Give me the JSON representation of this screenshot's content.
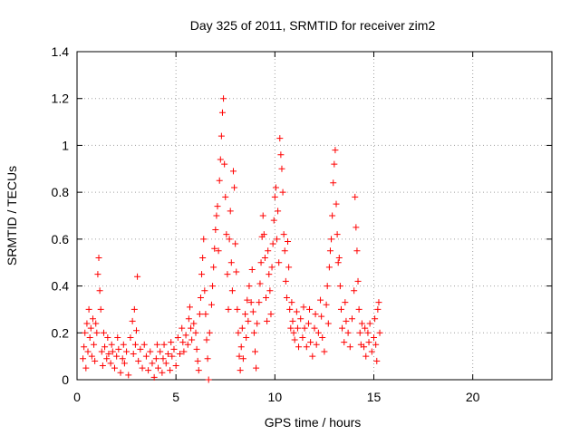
{
  "chart_data": {
    "type": "scatter",
    "title": "Day 325 of 2011, SRMTID for receiver zim2",
    "xlabel": "GPS time / hours",
    "ylabel": "SRMTID / TECUs",
    "xlim": [
      0,
      24
    ],
    "ylim": [
      0,
      1.4
    ],
    "xticks": [
      0,
      5,
      10,
      15,
      20
    ],
    "xtick_labels": [
      "0",
      "5",
      "10",
      "15",
      "20"
    ],
    "yticks": [
      0,
      0.2,
      0.4,
      0.6,
      0.8,
      1,
      1.2,
      1.4
    ],
    "ytick_labels": [
      "0",
      "0.2",
      "0.4",
      "0.6",
      "0.8",
      "1",
      "1.2",
      "1.4"
    ],
    "grid": true,
    "marker": "plus",
    "color": "#ff0000",
    "series": [
      {
        "name": "SRMTID",
        "points": [
          [
            0.3,
            0.09
          ],
          [
            0.35,
            0.14
          ],
          [
            0.4,
            0.2
          ],
          [
            0.45,
            0.05
          ],
          [
            0.5,
            0.24
          ],
          [
            0.55,
            0.12
          ],
          [
            0.6,
            0.3
          ],
          [
            0.65,
            0.18
          ],
          [
            0.7,
            0.22
          ],
          [
            0.75,
            0.1
          ],
          [
            0.8,
            0.26
          ],
          [
            0.85,
            0.15
          ],
          [
            0.9,
            0.08
          ],
          [
            0.95,
            0.24
          ],
          [
            1.0,
            0.2
          ],
          [
            1.05,
            0.45
          ],
          [
            1.1,
            0.52
          ],
          [
            1.15,
            0.38
          ],
          [
            1.2,
            0.3
          ],
          [
            1.25,
            0.12
          ],
          [
            1.3,
            0.06
          ],
          [
            1.35,
            0.2
          ],
          [
            1.4,
            0.14
          ],
          [
            1.5,
            0.09
          ],
          [
            1.55,
            0.18
          ],
          [
            1.6,
            0.11
          ],
          [
            1.7,
            0.07
          ],
          [
            1.75,
            0.15
          ],
          [
            1.8,
            0.12
          ],
          [
            1.9,
            0.05
          ],
          [
            2.0,
            0.1
          ],
          [
            2.05,
            0.18
          ],
          [
            2.1,
            0.13
          ],
          [
            2.2,
            0.03
          ],
          [
            2.3,
            0.09
          ],
          [
            2.35,
            0.15
          ],
          [
            2.4,
            0.07
          ],
          [
            2.5,
            0.12
          ],
          [
            2.6,
            0.02
          ],
          [
            2.7,
            0.18
          ],
          [
            2.8,
            0.25
          ],
          [
            2.85,
            0.11
          ],
          [
            2.9,
            0.3
          ],
          [
            2.95,
            0.15
          ],
          [
            3.0,
            0.21
          ],
          [
            3.05,
            0.44
          ],
          [
            3.1,
            0.08
          ],
          [
            3.2,
            0.13
          ],
          [
            3.3,
            0.05
          ],
          [
            3.4,
            0.15
          ],
          [
            3.5,
            0.1
          ],
          [
            3.6,
            0.04
          ],
          [
            3.7,
            0.12
          ],
          [
            3.8,
            0.07
          ],
          [
            3.9,
            0.01
          ],
          [
            4.0,
            0.09
          ],
          [
            4.05,
            0.15
          ],
          [
            4.1,
            0.05
          ],
          [
            4.2,
            0.12
          ],
          [
            4.3,
            0.03
          ],
          [
            4.35,
            0.09
          ],
          [
            4.4,
            0.15
          ],
          [
            4.5,
            0.07
          ],
          [
            4.6,
            0.11
          ],
          [
            4.7,
            0.04
          ],
          [
            4.75,
            0.16
          ],
          [
            4.8,
            0.1
          ],
          [
            4.9,
            0.13
          ],
          [
            5.0,
            0.06
          ],
          [
            5.1,
            0.18
          ],
          [
            5.2,
            0.11
          ],
          [
            5.3,
            0.22
          ],
          [
            5.35,
            0.16
          ],
          [
            5.4,
            0.12
          ],
          [
            5.5,
            0.19
          ],
          [
            5.6,
            0.15
          ],
          [
            5.65,
            0.26
          ],
          [
            5.7,
            0.31
          ],
          [
            5.75,
            0.22
          ],
          [
            5.8,
            0.17
          ],
          [
            5.9,
            0.24
          ],
          [
            6.0,
            0.2
          ],
          [
            6.05,
            0.13
          ],
          [
            6.1,
            0.08
          ],
          [
            6.15,
            0.04
          ],
          [
            6.2,
            0.28
          ],
          [
            6.25,
            0.35
          ],
          [
            6.3,
            0.45
          ],
          [
            6.35,
            0.52
          ],
          [
            6.4,
            0.6
          ],
          [
            6.45,
            0.38
          ],
          [
            6.5,
            0.28
          ],
          [
            6.55,
            0.17
          ],
          [
            6.6,
            0.09
          ],
          [
            6.65,
            0.0
          ],
          [
            6.7,
            0.2
          ],
          [
            6.8,
            0.32
          ],
          [
            6.85,
            0.4
          ],
          [
            6.9,
            0.48
          ],
          [
            6.95,
            0.56
          ],
          [
            7.0,
            0.64
          ],
          [
            7.05,
            0.7
          ],
          [
            7.1,
            0.74
          ],
          [
            7.15,
            0.55
          ],
          [
            7.2,
            0.85
          ],
          [
            7.25,
            0.94
          ],
          [
            7.3,
            1.04
          ],
          [
            7.35,
            1.14
          ],
          [
            7.4,
            1.2
          ],
          [
            7.45,
            0.92
          ],
          [
            7.5,
            0.78
          ],
          [
            7.55,
            0.62
          ],
          [
            7.6,
            0.45
          ],
          [
            7.65,
            0.3
          ],
          [
            7.7,
            0.6
          ],
          [
            7.75,
            0.72
          ],
          [
            7.8,
            0.5
          ],
          [
            7.85,
            0.38
          ],
          [
            7.9,
            0.89
          ],
          [
            7.95,
            0.82
          ],
          [
            8.0,
            0.58
          ],
          [
            8.05,
            0.46
          ],
          [
            8.1,
            0.3
          ],
          [
            8.15,
            0.2
          ],
          [
            8.2,
            0.1
          ],
          [
            8.25,
            0.04
          ],
          [
            8.3,
            0.14
          ],
          [
            8.35,
            0.22
          ],
          [
            8.4,
            0.09
          ],
          [
            8.5,
            0.28
          ],
          [
            8.55,
            0.18
          ],
          [
            8.6,
            0.34
          ],
          [
            8.65,
            0.25
          ],
          [
            8.7,
            0.4
          ],
          [
            8.8,
            0.33
          ],
          [
            8.85,
            0.47
          ],
          [
            8.9,
            0.29
          ],
          [
            8.95,
            0.2
          ],
          [
            9.0,
            0.12
          ],
          [
            9.05,
            0.05
          ],
          [
            9.1,
            0.24
          ],
          [
            9.2,
            0.33
          ],
          [
            9.25,
            0.41
          ],
          [
            9.3,
            0.5
          ],
          [
            9.35,
            0.61
          ],
          [
            9.4,
            0.7
          ],
          [
            9.45,
            0.62
          ],
          [
            9.5,
            0.52
          ],
          [
            9.55,
            0.35
          ],
          [
            9.6,
            0.25
          ],
          [
            9.65,
            0.55
          ],
          [
            9.7,
            0.45
          ],
          [
            9.75,
            0.38
          ],
          [
            9.8,
            0.28
          ],
          [
            9.85,
            0.48
          ],
          [
            9.9,
            0.58
          ],
          [
            9.95,
            0.68
          ],
          [
            10.0,
            0.78
          ],
          [
            10.05,
            0.82
          ],
          [
            10.1,
            0.6
          ],
          [
            10.15,
            0.72
          ],
          [
            10.2,
            0.5
          ],
          [
            10.25,
            1.03
          ],
          [
            10.3,
            0.96
          ],
          [
            10.35,
            0.9
          ],
          [
            10.4,
            0.8
          ],
          [
            10.45,
            0.62
          ],
          [
            10.5,
            0.55
          ],
          [
            10.55,
            0.42
          ],
          [
            10.6,
            0.35
          ],
          [
            10.65,
            0.59
          ],
          [
            10.7,
            0.48
          ],
          [
            10.75,
            0.3
          ],
          [
            10.8,
            0.22
          ],
          [
            10.85,
            0.33
          ],
          [
            10.9,
            0.25
          ],
          [
            10.95,
            0.2
          ],
          [
            11.0,
            0.17
          ],
          [
            11.1,
            0.29
          ],
          [
            11.15,
            0.22
          ],
          [
            11.2,
            0.14
          ],
          [
            11.3,
            0.26
          ],
          [
            11.4,
            0.18
          ],
          [
            11.45,
            0.31
          ],
          [
            11.5,
            0.22
          ],
          [
            11.6,
            0.14
          ],
          [
            11.7,
            0.24
          ],
          [
            11.75,
            0.3
          ],
          [
            11.8,
            0.16
          ],
          [
            11.9,
            0.1
          ],
          [
            12.0,
            0.22
          ],
          [
            12.05,
            0.28
          ],
          [
            12.1,
            0.15
          ],
          [
            12.2,
            0.2
          ],
          [
            12.3,
            0.34
          ],
          [
            12.35,
            0.27
          ],
          [
            12.4,
            0.18
          ],
          [
            12.5,
            0.12
          ],
          [
            12.6,
            0.32
          ],
          [
            12.65,
            0.4
          ],
          [
            12.7,
            0.24
          ],
          [
            12.75,
            0.48
          ],
          [
            12.8,
            0.55
          ],
          [
            12.85,
            0.6
          ],
          [
            12.9,
            0.7
          ],
          [
            12.95,
            0.84
          ],
          [
            13.0,
            0.92
          ],
          [
            13.05,
            0.98
          ],
          [
            13.1,
            0.75
          ],
          [
            13.15,
            0.62
          ],
          [
            13.2,
            0.5
          ],
          [
            13.25,
            0.52
          ],
          [
            13.3,
            0.4
          ],
          [
            13.35,
            0.3
          ],
          [
            13.4,
            0.22
          ],
          [
            13.5,
            0.16
          ],
          [
            13.55,
            0.33
          ],
          [
            13.6,
            0.25
          ],
          [
            13.7,
            0.2
          ],
          [
            13.8,
            0.14
          ],
          [
            13.9,
            0.26
          ],
          [
            14.0,
            0.38
          ],
          [
            14.05,
            0.78
          ],
          [
            14.1,
            0.65
          ],
          [
            14.15,
            0.55
          ],
          [
            14.2,
            0.42
          ],
          [
            14.25,
            0.3
          ],
          [
            14.3,
            0.2
          ],
          [
            14.35,
            0.15
          ],
          [
            14.4,
            0.24
          ],
          [
            14.5,
            0.14
          ],
          [
            14.55,
            0.22
          ],
          [
            14.6,
            0.1
          ],
          [
            14.7,
            0.2
          ],
          [
            14.75,
            0.16
          ],
          [
            14.8,
            0.24
          ],
          [
            14.9,
            0.12
          ],
          [
            15.0,
            0.18
          ],
          [
            15.05,
            0.26
          ],
          [
            15.1,
            0.15
          ],
          [
            15.15,
            0.08
          ],
          [
            15.2,
            0.3
          ],
          [
            15.25,
            0.33
          ],
          [
            15.3,
            0.2
          ]
        ]
      }
    ]
  }
}
